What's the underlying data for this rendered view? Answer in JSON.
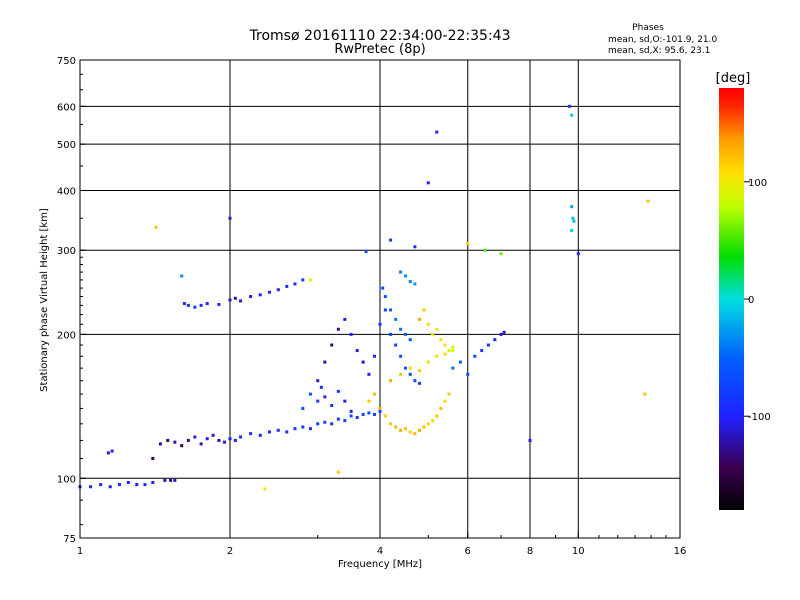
{
  "chart_data": {
    "type": "scatter",
    "title": "Tromsø 20161110 22:34:00-22:35:43",
    "subtitle": "RwPretec (8p)",
    "xlabel": "Frequency [MHz]",
    "ylabel": "Stationary phase Virtual Height [km]",
    "x_scale": "log",
    "y_scale": "log",
    "xlim": [
      1,
      16
    ],
    "ylim": [
      75,
      750
    ],
    "grid": true,
    "x_ticks": [
      "1",
      "2",
      "4",
      "6",
      "8",
      "10",
      "16"
    ],
    "x_tick_values": [
      1,
      2,
      4,
      6,
      8,
      10,
      16
    ],
    "x_grid_values": [
      2,
      4,
      6,
      8,
      10
    ],
    "y_ticks": [
      "75",
      "100",
      "200",
      "300",
      "400",
      "500",
      "600",
      "750"
    ],
    "y_tick_values": [
      75,
      100,
      200,
      300,
      400,
      500,
      600,
      750
    ],
    "y_grid_values": [
      100,
      200,
      300,
      400,
      500,
      600
    ],
    "legend": {
      "heading": "Phases",
      "line1": "mean, sd,O:-101.9, 21.0",
      "line2": "mean, sd,X:  95.6, 23.1"
    },
    "colorbar": {
      "label": "[deg]",
      "range": [
        -180,
        180
      ],
      "tick_labels": [
        "100",
        "0",
        "-100"
      ],
      "tick_values": [
        100,
        0,
        -100
      ]
    },
    "series": [
      {
        "x": [
          1.0,
          1.05,
          1.1,
          1.15,
          1.2,
          1.25,
          1.3,
          1.35,
          1.4,
          1.48,
          1.52,
          1.55
        ],
        "y": [
          96,
          96,
          97,
          96,
          97,
          98,
          97,
          97,
          98,
          99,
          99,
          99
        ],
        "phase": [
          -110,
          -100,
          -95,
          -105,
          -90,
          -100,
          -110,
          -95,
          -100,
          -120,
          -130,
          -115
        ]
      },
      {
        "x": [
          1.14,
          1.16,
          1.4,
          1.45,
          1.5,
          1.55,
          1.6,
          1.65,
          1.7,
          1.75,
          1.8,
          1.85,
          1.9,
          1.95,
          2.0,
          2.05
        ],
        "y": [
          113,
          114,
          110,
          118,
          120,
          119,
          117,
          120,
          122,
          118,
          121,
          123,
          120,
          119,
          121,
          120
        ],
        "phase": [
          -110,
          -100,
          -140,
          -130,
          -140,
          -120,
          -150,
          -130,
          -110,
          -120,
          -100,
          -110,
          -120,
          -110,
          -100,
          -105
        ]
      },
      {
        "x": [
          2.1,
          2.2,
          2.3,
          2.4,
          2.5,
          2.6,
          2.7,
          2.8,
          2.9,
          3.0,
          3.1,
          3.2,
          3.3,
          3.4,
          3.5,
          3.6,
          3.7,
          3.8,
          3.9,
          4.0
        ],
        "y": [
          122,
          124,
          123,
          125,
          126,
          125,
          127,
          128,
          127,
          130,
          131,
          130,
          133,
          132,
          135,
          134,
          136,
          137,
          136,
          138
        ],
        "phase": [
          -100,
          -95,
          -90,
          -95,
          -85,
          -90,
          -80,
          -85,
          -90,
          -80,
          -75,
          -85,
          -80,
          -75,
          -70,
          -80,
          -75,
          -70,
          -75,
          -70
        ]
      },
      {
        "x": [
          1.62,
          1.65,
          1.7,
          1.75,
          1.8,
          1.9,
          2.0,
          2.05,
          2.1,
          2.2,
          2.3,
          2.4,
          2.5,
          2.6,
          2.7,
          2.8
        ],
        "y": [
          232,
          230,
          228,
          230,
          232,
          231,
          236,
          238,
          235,
          240,
          242,
          245,
          248,
          252,
          255,
          260
        ],
        "phase": [
          -90,
          -85,
          -80,
          -90,
          -95,
          -100,
          -110,
          -115,
          -105,
          -100,
          -95,
          -90,
          -100,
          -95,
          -90,
          -85
        ]
      },
      {
        "x": [
          3.0,
          3.1,
          3.2,
          3.3,
          3.4,
          3.5,
          3.6,
          3.7,
          3.8,
          3.9,
          4.0,
          4.1,
          4.2,
          4.3,
          4.4,
          4.5,
          4.6,
          4.7,
          4.8
        ],
        "y": [
          160,
          175,
          190,
          205,
          215,
          200,
          185,
          175,
          165,
          180,
          210,
          225,
          200,
          190,
          180,
          170,
          165,
          160,
          158
        ],
        "phase": [
          -110,
          -120,
          -130,
          -125,
          -110,
          -100,
          -115,
          -120,
          -105,
          -95,
          -85,
          -80,
          -75,
          -70,
          -65,
          -60,
          -70,
          -75,
          -80
        ]
      },
      {
        "x": [
          2.8,
          2.9,
          3.0,
          3.05,
          3.1,
          3.2,
          3.3,
          3.4,
          3.5
        ],
        "y": [
          140,
          150,
          145,
          155,
          148,
          142,
          152,
          145,
          138
        ],
        "phase": [
          -70,
          -60,
          -80,
          -90,
          -100,
          -85,
          -90,
          -95,
          -100
        ]
      },
      {
        "x": [
          3.8,
          3.9,
          4.0,
          4.1,
          4.2,
          4.3,
          4.4,
          4.5,
          4.6,
          4.7,
          4.8,
          4.9,
          5.0,
          5.1,
          5.2,
          5.3,
          5.4,
          5.5
        ],
        "y": [
          145,
          150,
          140,
          135,
          130,
          128,
          126,
          127,
          125,
          124,
          126,
          128,
          130,
          132,
          135,
          140,
          145,
          150
        ],
        "phase": [
          120,
          125,
          130,
          115,
          120,
          125,
          130,
          120,
          115,
          125,
          130,
          120,
          115,
          110,
          120,
          125,
          110,
          115
        ]
      },
      {
        "x": [
          4.2,
          4.4,
          4.6,
          4.8,
          5.0,
          5.2,
          5.4,
          5.6
        ],
        "y": [
          160,
          165,
          170,
          168,
          175,
          180,
          182,
          185
        ],
        "phase": [
          130,
          120,
          110,
          115,
          100,
          110,
          105,
          95
        ]
      },
      {
        "x": [
          4.8,
          4.9,
          5.0,
          5.1,
          5.2,
          5.3,
          5.4,
          5.5,
          5.6
        ],
        "y": [
          215,
          225,
          210,
          200,
          205,
          195,
          190,
          185,
          188
        ],
        "phase": [
          130,
          120,
          110,
          100,
          90,
          95,
          105,
          85,
          80
        ]
      },
      {
        "x": [
          5.6,
          5.8,
          6.0,
          6.2,
          6.4,
          6.6,
          6.8,
          7.0,
          7.1
        ],
        "y": [
          170,
          175,
          165,
          180,
          185,
          190,
          195,
          200,
          202
        ],
        "phase": [
          -40,
          -50,
          -60,
          -70,
          -80,
          -90,
          -100,
          -110,
          -115
        ]
      },
      {
        "x": [
          4.05,
          4.1,
          4.2,
          4.3,
          4.4,
          4.5,
          4.6
        ],
        "y": [
          250,
          240,
          225,
          215,
          205,
          200,
          195
        ],
        "phase": [
          -70,
          -60,
          -50,
          -40,
          -45,
          -55,
          -60
        ]
      },
      {
        "x": [
          4.4,
          4.5,
          4.6,
          4.7
        ],
        "y": [
          270,
          265,
          258,
          255
        ],
        "phase": [
          -40,
          -30,
          -35,
          -25
        ]
      },
      {
        "x": [
          9.6,
          9.7,
          9.7,
          9.75,
          9.8,
          9.7,
          10.0
        ],
        "y": [
          600,
          575,
          370,
          350,
          345,
          330,
          295
        ],
        "phase": [
          -80,
          -10,
          -20,
          -10,
          -15,
          -5,
          -100
        ]
      },
      {
        "x": [
          1.42,
          1.6,
          2.0,
          2.35,
          2.9,
          3.3,
          3.75,
          4.2,
          4.7,
          5.0,
          5.2,
          6.0,
          6.5,
          7.0,
          8.0,
          13.8,
          13.6
        ],
        "y": [
          335,
          265,
          350,
          95,
          260,
          103,
          298,
          315,
          305,
          415,
          530,
          310,
          300,
          295,
          120,
          380,
          150
        ],
        "phase": [
          120,
          -30,
          -110,
          100,
          80,
          120,
          -60,
          -80,
          -90,
          -100,
          -95,
          110,
          50,
          60,
          -100,
          120,
          120
        ]
      }
    ]
  }
}
